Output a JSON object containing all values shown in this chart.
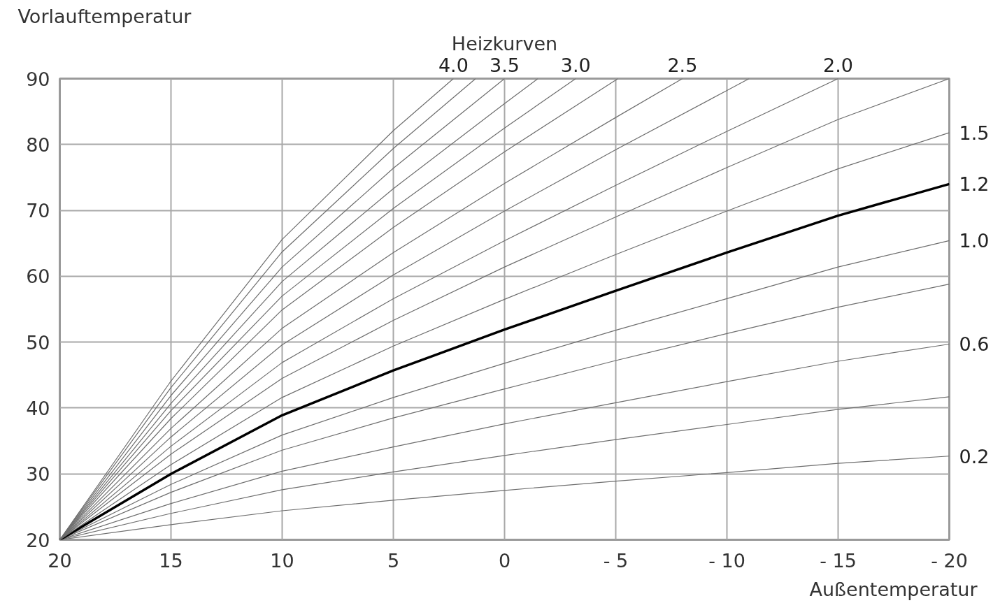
{
  "chart_data": {
    "type": "line",
    "title": "Heizkurven",
    "ylabel": "Vorlauftemperatur",
    "xlabel": "Außentemperatur",
    "xlim": [
      20,
      -20
    ],
    "xticks": [
      20,
      15,
      10,
      5,
      0,
      {
        "value": -5,
        "label": "- 5"
      },
      {
        "value": -10,
        "label": "- 10"
      },
      {
        "value": -15,
        "label": "- 15"
      },
      {
        "value": -20,
        "label": "- 20"
      }
    ],
    "ylim": [
      20,
      90
    ],
    "yticks": [
      20,
      30,
      40,
      50,
      60,
      70,
      80,
      90
    ],
    "grid": true,
    "marker": "none",
    "line_style": "solid",
    "series": [
      {
        "name": "0.2",
        "color": "#6e6e6e",
        "x": [
          20,
          15,
          10,
          5,
          0,
          -5,
          -10,
          -15,
          -20
        ],
        "values": [
          20,
          22.3,
          24.4,
          26.0,
          27.5,
          28.9,
          30.2,
          31.6,
          32.7
        ]
      },
      {
        "color": "#6e6e6e",
        "x": [
          20,
          15,
          10,
          5,
          0,
          -5,
          -10,
          -15,
          -20
        ],
        "values": [
          20,
          24.0,
          27.6,
          30.3,
          32.8,
          35.2,
          37.5,
          39.8,
          41.7
        ]
      },
      {
        "name": "0.6",
        "color": "#6e6e6e",
        "x": [
          20,
          15,
          10,
          5,
          0,
          -5,
          -10,
          -15,
          -20
        ],
        "values": [
          20,
          25.5,
          30.4,
          34.1,
          37.6,
          40.8,
          44.0,
          47.1,
          49.7
        ]
      },
      {
        "color": "#6e6e6e",
        "x": [
          20,
          15,
          10,
          5,
          0,
          -5,
          -10,
          -15,
          -20
        ],
        "values": [
          20,
          27.2,
          33.6,
          38.5,
          42.9,
          47.2,
          51.3,
          55.3,
          58.8
        ]
      },
      {
        "name": "1.0",
        "color": "#6e6e6e",
        "x": [
          20,
          15,
          10,
          5,
          0,
          -5,
          -10,
          -15,
          -20
        ],
        "values": [
          20,
          28.4,
          35.9,
          41.6,
          46.8,
          51.8,
          56.6,
          61.4,
          65.4
        ]
      },
      {
        "name": "1.2",
        "color": "#000000",
        "x": [
          20,
          15,
          10,
          5,
          0,
          -5,
          -10,
          -15,
          -20
        ],
        "values": [
          20,
          30,
          38.9,
          45.7,
          51.9,
          57.8,
          63.6,
          69.2,
          74
        ]
      },
      {
        "name": "1.5",
        "color": "#6e6e6e",
        "x": [
          20,
          15,
          10,
          5,
          0,
          -5,
          -10,
          -15,
          -20
        ],
        "values": [
          20,
          31.4,
          41.6,
          49.4,
          56.5,
          63.3,
          69.9,
          76.3,
          81.8
        ]
      },
      {
        "color": "#6e6e6e",
        "x": [
          20,
          15,
          10,
          5,
          0,
          -5,
          -10,
          -15,
          -20
        ],
        "values": [
          20,
          33.0,
          44.5,
          53.3,
          61.4,
          69.0,
          76.5,
          83.8,
          90
        ]
      },
      {
        "name": "2.0",
        "color": "#6e6e6e",
        "x": [
          20,
          15,
          10,
          5,
          0,
          -5,
          -10,
          -15
        ],
        "values": [
          20,
          34.2,
          46.9,
          56.6,
          65.4,
          73.8,
          82.0,
          90
        ]
      },
      {
        "color": "#6e6e6e",
        "x": [
          20,
          15,
          10,
          5,
          0,
          -5,
          -10,
          -11.0
        ],
        "values": [
          20,
          35.6,
          49.6,
          60.2,
          69.9,
          79.2,
          88.2,
          90
        ]
      },
      {
        "name": "2.5",
        "color": "#6e6e6e",
        "x": [
          20,
          15,
          10,
          5,
          0,
          -5,
          -8.0
        ],
        "values": [
          20,
          36.9,
          52.1,
          63.6,
          74.1,
          84.1,
          90
        ]
      },
      {
        "color": "#6e6e6e",
        "x": [
          20,
          15,
          10,
          5,
          0,
          -5.1
        ],
        "values": [
          20,
          38.4,
          54.9,
          67.4,
          78.9,
          90
        ]
      },
      {
        "name": "3.0",
        "color": "#6e6e6e",
        "x": [
          20,
          15,
          10,
          5,
          0,
          -3.2
        ],
        "values": [
          20,
          39.6,
          57.0,
          70.3,
          82.5,
          90
        ]
      },
      {
        "color": "#6e6e6e",
        "x": [
          20,
          15,
          10,
          5,
          0,
          -1.5
        ],
        "values": [
          20,
          40.7,
          59.2,
          73.3,
          86.2,
          90
        ]
      },
      {
        "name": "3.5",
        "color": "#6e6e6e",
        "x": [
          20,
          15,
          10,
          5,
          0
        ],
        "values": [
          20,
          41.9,
          61.4,
          76.4,
          90
        ]
      },
      {
        "color": "#6e6e6e",
        "x": [
          20,
          15,
          10,
          5,
          1.3
        ],
        "values": [
          20,
          43.1,
          63.7,
          79.4,
          90
        ]
      },
      {
        "name": "4.0",
        "color": "#6e6e6e",
        "x": [
          20,
          15,
          10,
          5,
          2.3
        ],
        "values": [
          20,
          44.1,
          65.6,
          82.1,
          90
        ]
      }
    ]
  }
}
